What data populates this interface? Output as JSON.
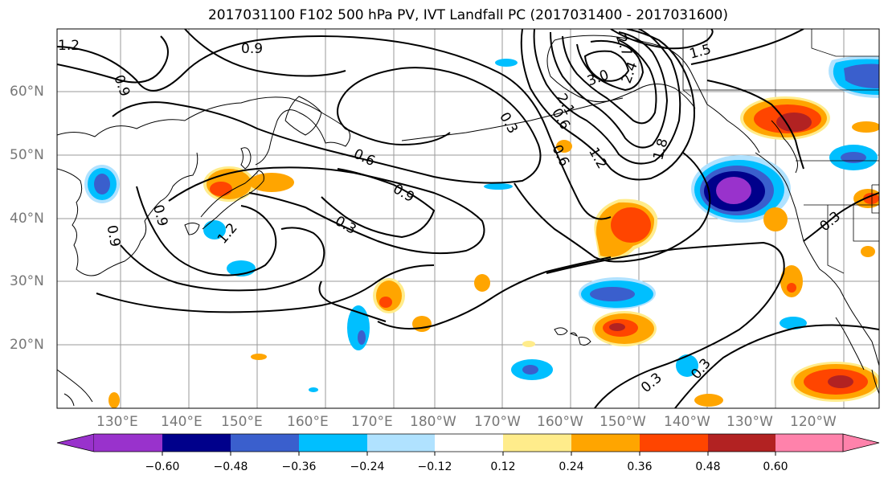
{
  "title": "2017031100 F102 500 hPa PV, IVT Landfall PC (2017031400 - 2017031600)",
  "lat_labels": [
    "60°N",
    "50°N",
    "40°N",
    "30°N",
    "20°N"
  ],
  "lon_labels": [
    "130°E",
    "140°E",
    "150°E",
    "160°E",
    "170°E",
    "180°W",
    "170°W",
    "160°W",
    "150°W",
    "140°W",
    "130°W",
    "120°W"
  ],
  "contour_labels": [
    "1.2",
    "0.9",
    "0.9",
    "3.0",
    "2.7",
    "2.4",
    "1.5",
    "0.3",
    "0.6",
    "0.6",
    "2.1",
    "1.2",
    "1.8",
    "0.6",
    "0.9",
    "0.3",
    "0.9",
    "1.2",
    "0.9",
    "0.3",
    "0.3",
    "0.3"
  ],
  "colorbar": {
    "ticks": [
      "−0.60",
      "−0.48",
      "−0.36",
      "−0.24",
      "−0.12",
      "0.12",
      "0.24",
      "0.36",
      "0.48",
      "0.60"
    ],
    "colors": [
      "#9932cc",
      "#00008b",
      "#3a5fcd",
      "#00bfff",
      "#b0e2ff",
      "#ffffff",
      "#ffec8b",
      "#ffa500",
      "#ff4500",
      "#b22222",
      "#ff82ab"
    ]
  },
  "fill_colors": {
    "purple": "#9932cc",
    "navy": "#00008b",
    "royal_blue": "#3a5fcd",
    "sky_blue": "#00bfff",
    "light_blue": "#b0e2ff",
    "light_yellow": "#ffec8b",
    "orange": "#ffa500",
    "orange_red": "#ff4500",
    "firebrick": "#b22222"
  }
}
